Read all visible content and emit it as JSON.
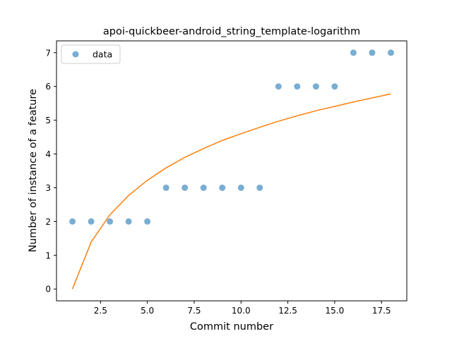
{
  "chart_data": {
    "type": "scatter",
    "title": "apoi-quickbeer-android_string_template-logarithm",
    "xlabel": "Commit number",
    "ylabel": "Number of instance of a feature",
    "xlim": [
      0.15,
      18.85
    ],
    "ylim": [
      -0.35,
      7.35
    ],
    "x_ticks": [
      2.5,
      5.0,
      7.5,
      10.0,
      12.5,
      15.0,
      17.5
    ],
    "x_tick_labels": [
      "2.5",
      "5.0",
      "7.5",
      "10.0",
      "12.5",
      "15.0",
      "17.5"
    ],
    "y_ticks": [
      0,
      1,
      2,
      3,
      4,
      5,
      6,
      7
    ],
    "y_tick_labels": [
      "0",
      "1",
      "2",
      "3",
      "4",
      "5",
      "6",
      "7"
    ],
    "grid": false,
    "legend": {
      "position": "top-left",
      "entries": [
        "data"
      ]
    },
    "series": [
      {
        "name": "data",
        "kind": "scatter",
        "color": "#1f77b4",
        "x": [
          1,
          2,
          3,
          4,
          5,
          6,
          7,
          8,
          9,
          10,
          11,
          12,
          13,
          14,
          15,
          16,
          17,
          18
        ],
        "y": [
          2,
          2,
          2,
          2,
          2,
          3,
          3,
          3,
          3,
          3,
          3,
          6,
          6,
          6,
          6,
          7,
          7,
          7
        ]
      },
      {
        "kind": "line",
        "color": "#ff7f0e",
        "x": [
          1,
          2,
          3,
          4,
          5,
          6,
          7,
          8,
          9,
          10,
          11,
          12,
          13,
          14,
          15,
          16,
          17,
          18
        ],
        "y": [
          0.0,
          1.39,
          2.2,
          2.77,
          3.22,
          3.59,
          3.9,
          4.16,
          4.4,
          4.6,
          4.79,
          4.97,
          5.13,
          5.28,
          5.41,
          5.54,
          5.66,
          5.78
        ]
      }
    ]
  }
}
